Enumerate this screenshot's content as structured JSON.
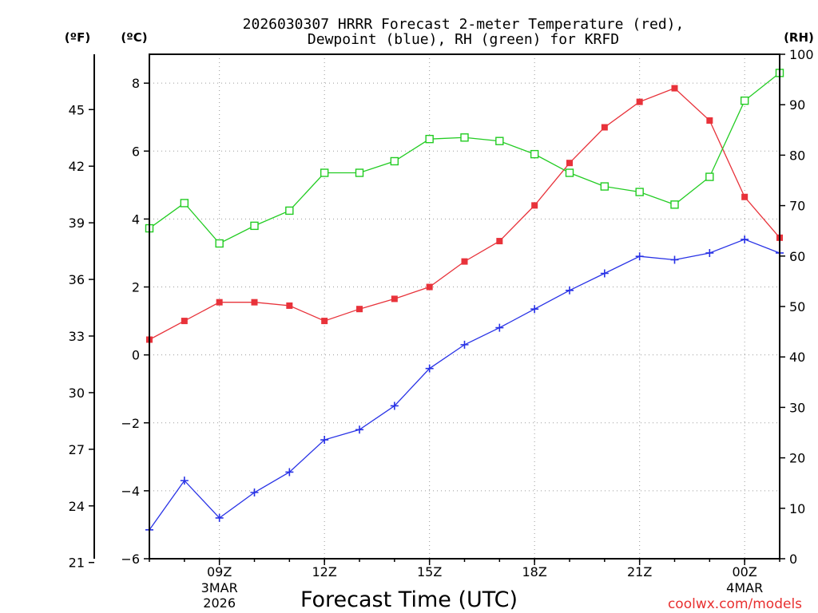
{
  "chart_data": {
    "type": "line",
    "title": "2026030307 HRRR Forecast 2-meter Temperature (red),",
    "subtitle": "Dewpoint (blue), RH (green) for KRFD",
    "xlabel": "Forecast Time (UTC)",
    "unit_f": "(ºF)",
    "unit_c": "(ºC)",
    "unit_rh": "(RH)",
    "credit": "coolwx.com/models",
    "x_hours": [
      7,
      8,
      9,
      10,
      11,
      12,
      13,
      14,
      15,
      16,
      17,
      18,
      19,
      20,
      21,
      22,
      23,
      24,
      25
    ],
    "xlim": [
      7,
      25
    ],
    "ylim_c": [
      -6,
      8.85
    ],
    "ylim_rh": [
      0,
      100
    ],
    "ticks_c": [
      -6,
      -4,
      -2,
      0,
      2,
      4,
      6,
      8
    ],
    "ticks_f": [
      21,
      24,
      27,
      30,
      33,
      36,
      39,
      42,
      45
    ],
    "ticks_rh": [
      0,
      10,
      20,
      30,
      40,
      50,
      60,
      70,
      80,
      90,
      100
    ],
    "x_ticks": [
      {
        "hour": 9,
        "label": "09Z",
        "line2": "3MAR",
        "line3": "2026"
      },
      {
        "hour": 12,
        "label": "12Z",
        "line2": "",
        "line3": ""
      },
      {
        "hour": 15,
        "label": "15Z",
        "line2": "",
        "line3": ""
      },
      {
        "hour": 18,
        "label": "18Z",
        "line2": "",
        "line3": ""
      },
      {
        "hour": 21,
        "label": "21Z",
        "line2": "",
        "line3": ""
      },
      {
        "hour": 24,
        "label": "00Z",
        "line2": "4MAR",
        "line3": ""
      }
    ],
    "series": [
      {
        "name": "Temperature",
        "axis": "c",
        "color": "#e8323a",
        "marker": "filled-square",
        "values": [
          0.45,
          1.0,
          1.55,
          1.55,
          1.45,
          1.0,
          1.35,
          1.65,
          2.0,
          2.75,
          3.35,
          4.4,
          5.65,
          6.7,
          7.45,
          7.85,
          6.9,
          4.65,
          3.45
        ]
      },
      {
        "name": "Dewpoint",
        "axis": "c",
        "color": "#2832e6",
        "marker": "plus",
        "values": [
          -5.15,
          -3.7,
          -4.8,
          -4.05,
          -3.45,
          -2.5,
          -2.2,
          -1.5,
          -0.4,
          0.3,
          0.8,
          1.35,
          1.9,
          2.4,
          2.9,
          2.8,
          3.0,
          3.4,
          3.0
        ]
      },
      {
        "name": "RH",
        "axis": "rh",
        "color": "#22cc22",
        "marker": "open-square",
        "values": [
          65.5,
          70.5,
          62.5,
          66,
          69,
          76.5,
          76.5,
          78.8,
          83.2,
          83.5,
          82.8,
          80.2,
          76.5,
          73.8,
          72.7,
          70.2,
          75.7,
          90.8,
          96.3
        ]
      }
    ]
  }
}
